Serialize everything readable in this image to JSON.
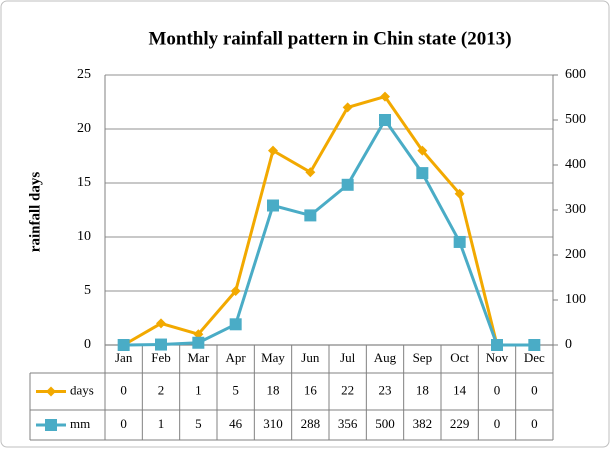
{
  "chart_data": {
    "type": "line",
    "title": "Monthly rainfall pattern in Chin state (2013)",
    "ylabel": "rainfall days",
    "categories": [
      "Jan",
      "Feb",
      "Mar",
      "Apr",
      "May",
      "Jun",
      "Jul",
      "Aug",
      "Sep",
      "Oct",
      "Nov",
      "Dec"
    ],
    "series": [
      {
        "name": "days",
        "color": "#f2a900",
        "marker": "diamond",
        "values": [
          0,
          2,
          1,
          5,
          18,
          16,
          22,
          23,
          18,
          14,
          0,
          0
        ]
      },
      {
        "name": "mm",
        "color": "#4aacc6",
        "marker": "square",
        "axis": "y2",
        "values": [
          0,
          1,
          5,
          46,
          310,
          288,
          356,
          500,
          382,
          229,
          0,
          0
        ]
      }
    ],
    "ylim": [
      0,
      25
    ],
    "yticks": [
      0,
      5,
      10,
      15,
      20,
      25
    ],
    "y2lim": [
      0,
      600
    ],
    "y2ticks": [
      0,
      100,
      200,
      300,
      400,
      500,
      600
    ],
    "grid": true,
    "data_table": true
  }
}
